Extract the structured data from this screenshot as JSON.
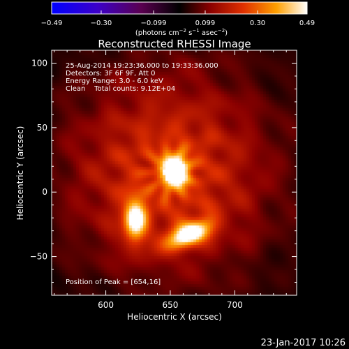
{
  "chart_data": {
    "type": "heatmap",
    "title": "Reconstructed RHESSI Image",
    "xlabel": "Heliocentric X (arcsec)",
    "ylabel": "Heliocentric Y (arcsec)",
    "xlim": [
      558,
      748
    ],
    "ylim": [
      -80,
      110
    ],
    "x_ticks": [
      600,
      650,
      700
    ],
    "y_ticks": [
      -50,
      0,
      50,
      100
    ],
    "x_tick_labels": [
      "600",
      "650",
      "700"
    ],
    "y_tick_labels": [
      "−50",
      "0",
      "50",
      "100"
    ],
    "colorbar": {
      "range": [
        -0.49,
        0.49
      ],
      "tick_labels": [
        "−0.49",
        "−0.30",
        "−0.099",
        "0.099",
        "0.30",
        "0.49"
      ],
      "tick_values": [
        -0.49,
        -0.3,
        -0.099,
        0.099,
        0.3,
        0.49
      ],
      "unit_prefix": "(photons cm",
      "unit_exp1": "−2",
      "unit_mid": " s",
      "unit_exp2": "−1",
      "unit_mid2": " asec",
      "unit_exp3": "−2",
      "unit_suffix": ")"
    },
    "info_lines": [
      "25-Aug-2014 19:23:36.000 to 19:33:36.000",
      "Detectors: 3F 6F 9F, Att 0",
      "Energy Range: 3.0 - 6.0 keV",
      "Clean    Total counts: 9.12E+04"
    ],
    "peak_label": "Position of Peak = [654,16]",
    "sources": [
      {
        "x": 654,
        "y": 16,
        "peak": 0.49,
        "sx": 7,
        "sy": 9,
        "angle": 0
      },
      {
        "x": 623,
        "y": -22,
        "peak": 0.4,
        "sx": 6,
        "sy": 12,
        "angle": 0
      },
      {
        "x": 665,
        "y": -33,
        "peak": 0.44,
        "sx": 13,
        "sy": 6,
        "angle": 25
      }
    ]
  },
  "footer": {
    "timestamp": "23-Jan-2017 10:26"
  }
}
